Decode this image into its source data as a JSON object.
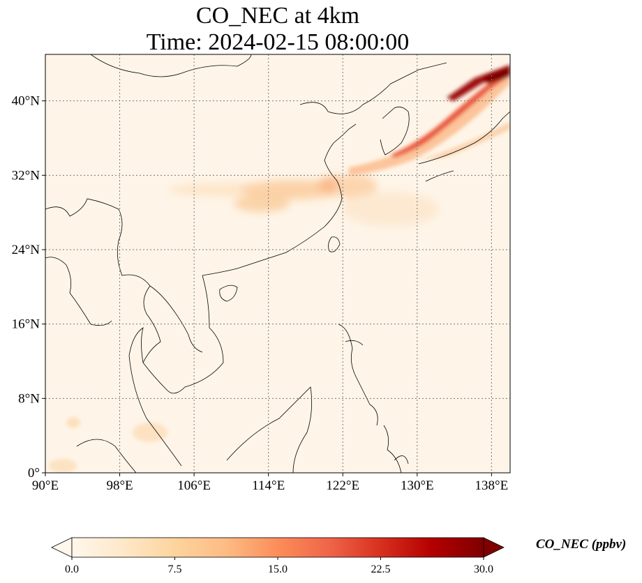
{
  "title": {
    "line1": "CO_NEC at 4km",
    "line2": "Time: 2024-02-15 08:00:00"
  },
  "map": {
    "projection": "PlateCarree",
    "lon_range": [
      90,
      140
    ],
    "lat_range": [
      0,
      45
    ],
    "lon_ticks": [
      {
        "value": 90,
        "label": "90°E"
      },
      {
        "value": 98,
        "label": "98°E"
      },
      {
        "value": 106,
        "label": "106°E"
      },
      {
        "value": 114,
        "label": "114°E"
      },
      {
        "value": 122,
        "label": "122°E"
      },
      {
        "value": 130,
        "label": "130°E"
      },
      {
        "value": 138,
        "label": "138°E"
      }
    ],
    "lat_ticks": [
      {
        "value": 0,
        "label": "0°"
      },
      {
        "value": 8,
        "label": "8°N"
      },
      {
        "value": 16,
        "label": "16°N"
      },
      {
        "value": 24,
        "label": "24°N"
      },
      {
        "value": 32,
        "label": "32°N"
      },
      {
        "value": 40,
        "label": "40°N"
      }
    ],
    "gridlines": "dotted"
  },
  "colorbar": {
    "label": "CO_NEC (ppbv)",
    "colormap": "OrRd",
    "colors": [
      "#fff7ec",
      "#fee8c8",
      "#fdd49e",
      "#fdbb84",
      "#fc8d59",
      "#ef6548",
      "#d7301f",
      "#b30000",
      "#7f0000"
    ],
    "ticks": [
      {
        "value": 0.0,
        "label": "0.0"
      },
      {
        "value": 7.5,
        "label": "7.5"
      },
      {
        "value": 15.0,
        "label": "15.0"
      },
      {
        "value": 22.5,
        "label": "22.5"
      },
      {
        "value": 30.0,
        "label": "30.0"
      }
    ],
    "range": [
      0,
      30
    ],
    "extend": "both"
  }
}
